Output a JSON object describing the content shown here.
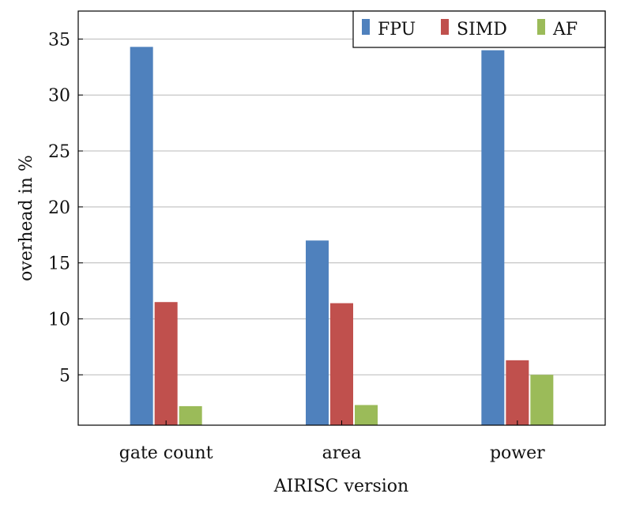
{
  "chart_data": {
    "type": "bar",
    "categories": [
      "gate count",
      "area",
      "power"
    ],
    "series": [
      {
        "name": "FPU",
        "values": [
          34.3,
          17.0,
          34.0
        ]
      },
      {
        "name": "SIMD",
        "values": [
          11.5,
          11.4,
          6.3
        ]
      },
      {
        "name": "AF",
        "values": [
          2.2,
          2.3,
          5.0
        ]
      }
    ],
    "xlabel": "AIRISC version",
    "ylabel": "overhead in %",
    "ylim": [
      0.5,
      37.5
    ],
    "yticks": [
      5,
      10,
      15,
      20,
      25,
      30,
      35
    ],
    "grid": true,
    "legend_position": "top-right",
    "colors": {
      "FPU": "#4f81bd",
      "SIMD": "#c0504d",
      "AF": "#9bbb59"
    }
  }
}
